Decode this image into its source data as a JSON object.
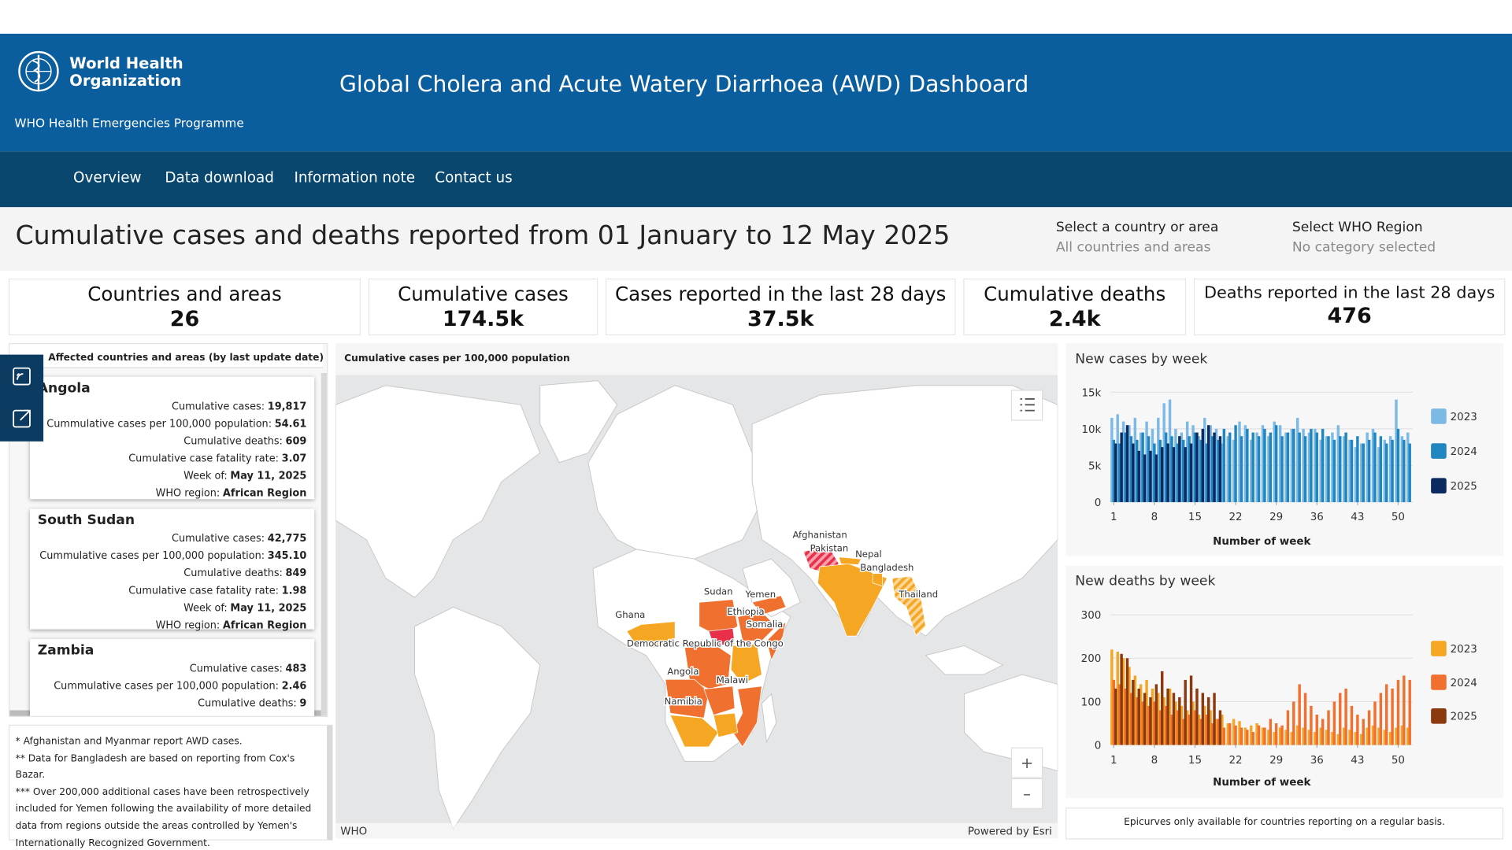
{
  "header": {
    "org_line1": "World Health",
    "org_line2": "Organization",
    "programme": "WHO Health Emergencies Programme",
    "title": "Global Cholera and Acute Watery Diarrhoea (AWD) Dashboard"
  },
  "nav": [
    "Overview",
    "Data download",
    "Information note",
    "Contact us"
  ],
  "page_title": "Cumulative cases and deaths reported from 01 January to 12 May 2025",
  "filters": [
    {
      "label": "Select a country or area",
      "value": "All countries and areas"
    },
    {
      "label": "Select WHO Region",
      "value": "No category selected"
    }
  ],
  "kpis": [
    {
      "label": "Countries and areas",
      "value": "26"
    },
    {
      "label": "Cumulative cases",
      "value": "174.5k"
    },
    {
      "label": "Cases reported in the last 28 days",
      "value": "37.5k"
    },
    {
      "label": "Cumulative deaths",
      "value": "2.4k"
    },
    {
      "label": "Deaths reported in the last 28 days",
      "value": "476"
    }
  ],
  "country_list": {
    "title": "Affected countries and areas (by last update date)",
    "items": [
      {
        "name": "Angola",
        "fields": [
          {
            "label": "Cumulative cases:",
            "value": "19,817"
          },
          {
            "label": "Cummulative cases per 100,000 population:",
            "value": "54.61"
          },
          {
            "label": "Cumulative deaths:",
            "value": "609"
          },
          {
            "label": "Cumulative case fatality rate:",
            "value": "3.07"
          },
          {
            "label": "Week of:",
            "value": "May 11, 2025"
          },
          {
            "label": "WHO region:",
            "value": "African Region"
          }
        ]
      },
      {
        "name": "South Sudan",
        "fields": [
          {
            "label": "Cumulative cases:",
            "value": "42,775"
          },
          {
            "label": "Cummulative cases per 100,000 population:",
            "value": "345.10"
          },
          {
            "label": "Cumulative deaths:",
            "value": "849"
          },
          {
            "label": "Cumulative case fatality rate:",
            "value": "1.98"
          },
          {
            "label": "Week of:",
            "value": "May 11, 2025"
          },
          {
            "label": "WHO region:",
            "value": "African Region"
          }
        ]
      },
      {
        "name": "Zambia",
        "fields": [
          {
            "label": "Cumulative cases:",
            "value": "483"
          },
          {
            "label": "Cummulative cases per 100,000 population:",
            "value": "2.46"
          },
          {
            "label": "Cumulative deaths:",
            "value": "9"
          }
        ]
      }
    ]
  },
  "notes": [
    "* Afghanistan and Myanmar report AWD cases.",
    "** Data for Bangladesh are based on reporting from Cox's Bazar.",
    "*** Over 200,000 additional cases have been retrospectively included for Yemen following the availability of more detailed data from regions outside the areas controlled by Yemen's Internationally Recognized Government."
  ],
  "map": {
    "title": "Cumulative cases per 100,000 population",
    "labels": [
      "Afghanistan",
      "Pakistan",
      "Nepal",
      "Bangladesh",
      "Thailand",
      "Sudan",
      "Yemen",
      "Ethiopia",
      "Somalia",
      "Ghana",
      "Democratic Republic of the Congo",
      "Angola",
      "Malawi",
      "Namibia"
    ],
    "zoom_in": "+",
    "zoom_out": "–",
    "credit_left": "WHO",
    "credit_right": "Powered by Esri"
  },
  "chart_data": [
    {
      "type": "bar",
      "title": "New cases by week",
      "x_label": "Number of week",
      "x": [
        1,
        2,
        3,
        4,
        5,
        6,
        7,
        8,
        9,
        10,
        11,
        12,
        13,
        14,
        15,
        16,
        17,
        18,
        19,
        20,
        21,
        22,
        23,
        24,
        25,
        26,
        27,
        28,
        29,
        30,
        31,
        32,
        33,
        34,
        35,
        36,
        37,
        38,
        39,
        40,
        41,
        42,
        43,
        44,
        45,
        46,
        47,
        48,
        49,
        50,
        51,
        52
      ],
      "xlim": [
        0.5,
        52.5
      ],
      "xticks": [
        1,
        8,
        15,
        22,
        29,
        36,
        43,
        50
      ],
      "ylim": [
        0,
        15000
      ],
      "yticks": [
        0,
        {
          "value": 5000,
          "label": "5k"
        },
        {
          "value": 10000,
          "label": "10k"
        },
        {
          "value": 15000,
          "label": "15k"
        }
      ],
      "grid": true,
      "legend": "right",
      "series": [
        {
          "name": "2023",
          "color": "#7db9e5",
          "values": [
            11500,
            12000,
            11000,
            10500,
            11500,
            9500,
            11000,
            10000,
            11500,
            13500,
            14000,
            10000,
            9500,
            11000,
            10500,
            9000,
            11500,
            10500,
            10000,
            8000,
            9000,
            8500,
            11000,
            10500,
            8500,
            9500,
            10500,
            9000,
            11000,
            10500,
            9500,
            10000,
            11500,
            10000,
            9500,
            10000,
            8500,
            9000,
            9500,
            10500,
            9000,
            8500,
            7500,
            8000,
            9500,
            10000,
            7500,
            8500,
            9000,
            14000,
            9000,
            9500
          ]
        },
        {
          "name": "2024",
          "color": "#1f86c1",
          "values": [
            8500,
            8000,
            9500,
            9000,
            8500,
            9500,
            9000,
            8000,
            8500,
            9500,
            9000,
            8000,
            8500,
            9000,
            9500,
            8500,
            8000,
            9000,
            8500,
            10000,
            9500,
            10500,
            9000,
            10000,
            9500,
            9000,
            10000,
            9500,
            10500,
            9000,
            9500,
            10000,
            9500,
            9000,
            10000,
            9500,
            10000,
            9000,
            8500,
            9000,
            9500,
            8500,
            9000,
            8000,
            8500,
            9500,
            9000,
            8000,
            8500,
            10000,
            8500,
            8000
          ]
        },
        {
          "name": "2025",
          "color": "#0b2a5f",
          "values": [
            8000,
            9500,
            10500,
            8000,
            7000,
            6500,
            7000,
            6500,
            7500,
            8000,
            7500,
            9000,
            7500,
            8000,
            9500,
            10000,
            10500,
            9500,
            9000,
            null,
            null,
            null,
            null,
            null,
            null,
            null,
            null,
            null,
            null,
            null,
            null,
            null,
            null,
            null,
            null,
            null,
            null,
            null,
            null,
            null,
            null,
            null,
            null,
            null,
            null,
            null,
            null,
            null,
            null,
            null,
            null,
            null
          ]
        }
      ]
    },
    {
      "type": "bar",
      "title": "New deaths by week",
      "x_label": "Number of week",
      "x": [
        1,
        2,
        3,
        4,
        5,
        6,
        7,
        8,
        9,
        10,
        11,
        12,
        13,
        14,
        15,
        16,
        17,
        18,
        19,
        20,
        21,
        22,
        23,
        24,
        25,
        26,
        27,
        28,
        29,
        30,
        31,
        32,
        33,
        34,
        35,
        36,
        37,
        38,
        39,
        40,
        41,
        42,
        43,
        44,
        45,
        46,
        47,
        48,
        49,
        50,
        51,
        52
      ],
      "xlim": [
        0.5,
        52.5
      ],
      "xticks": [
        1,
        8,
        15,
        22,
        29,
        36,
        43,
        50
      ],
      "ylim": [
        0,
        300
      ],
      "yticks": [
        0,
        100,
        200,
        300
      ],
      "grid": true,
      "legend": "right",
      "series": [
        {
          "name": "2023",
          "color": "#f5a623",
          "values": [
            220,
            215,
            200,
            180,
            160,
            140,
            150,
            130,
            120,
            110,
            130,
            100,
            90,
            80,
            100,
            70,
            90,
            80,
            60,
            70,
            50,
            60,
            55,
            40,
            45,
            50,
            40,
            35,
            30,
            40,
            35,
            30,
            45,
            40,
            35,
            30,
            40,
            35,
            30,
            25,
            40,
            35,
            30,
            25,
            40,
            45,
            40,
            35,
            30,
            40,
            45,
            40
          ]
        },
        {
          "name": "2024",
          "color": "#f07030",
          "values": [
            150,
            140,
            130,
            120,
            110,
            100,
            90,
            100,
            80,
            90,
            70,
            80,
            60,
            70,
            80,
            60,
            70,
            50,
            60,
            40,
            50,
            45,
            40,
            35,
            30,
            45,
            40,
            60,
            50,
            45,
            80,
            100,
            140,
            120,
            90,
            70,
            60,
            80,
            100,
            120,
            130,
            90,
            70,
            60,
            80,
            100,
            120,
            140,
            130,
            150,
            160,
            150
          ]
        },
        {
          "name": "2025",
          "color": "#8b3a0f",
          "values": [
            130,
            210,
            200,
            150,
            130,
            120,
            110,
            140,
            170,
            130,
            120,
            110,
            150,
            160,
            130,
            120,
            110,
            120,
            80,
            null,
            null,
            null,
            null,
            null,
            null,
            null,
            null,
            null,
            null,
            null,
            null,
            null,
            null,
            null,
            null,
            null,
            null,
            null,
            null,
            null,
            null,
            null,
            null,
            null,
            null,
            null,
            null,
            null,
            null,
            null,
            null,
            null
          ]
        }
      ]
    }
  ],
  "chart_footnote": "Epicurves only available for countries reporting on a regular basis."
}
